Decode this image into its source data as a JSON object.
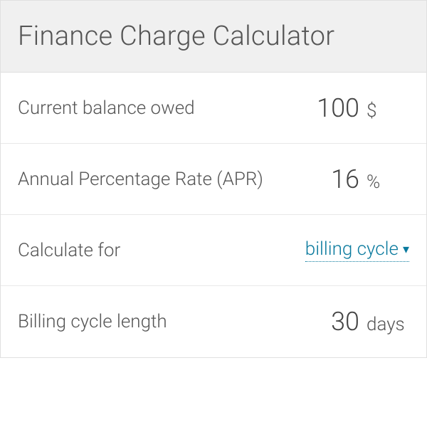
{
  "header": {
    "title": "Finance Charge Calculator"
  },
  "rows": [
    {
      "label": "Current balance owed",
      "value": "100",
      "unit": "$",
      "type": "number"
    },
    {
      "label": "Annual Percentage Rate (APR)",
      "value": "16",
      "unit": "%",
      "type": "number"
    },
    {
      "label": "Calculate for",
      "value": "billing cycle",
      "type": "dropdown"
    },
    {
      "label": "Billing cycle length",
      "value": "30",
      "unit": "days",
      "type": "number"
    }
  ],
  "colors": {
    "header_bg": "#f0f0f0",
    "row_bg": "#ffffff",
    "border": "#e0e0e0",
    "row_border": "#e8e8e8",
    "text_primary": "#555555",
    "text_value": "#444444",
    "accent": "#0a7a9e"
  },
  "typography": {
    "title_fontsize": 38,
    "label_fontsize": 26,
    "value_fontsize": 36,
    "unit_fontsize": 26,
    "font_weight": 300
  }
}
